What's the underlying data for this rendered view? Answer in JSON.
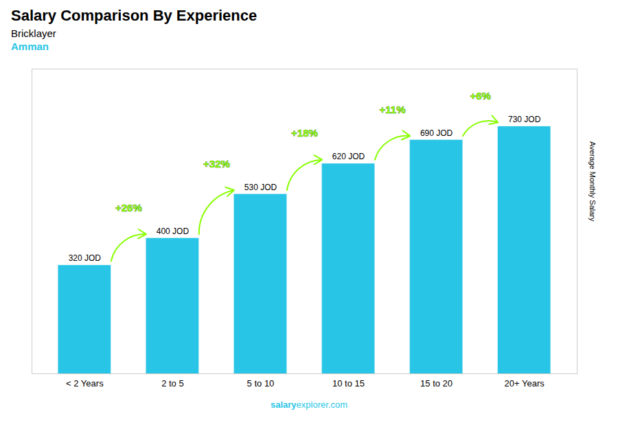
{
  "chart_data": {
    "type": "bar",
    "title": "Salary Comparison By Experience",
    "subtitle": [
      "Bricklayer",
      "Amman"
    ],
    "ylabel": "Average Monthly Salary",
    "caption": [
      "salary",
      "explorer.com"
    ],
    "categories": [
      "< 2 Years",
      "2 to 5",
      "5 to 10",
      "10 to 15",
      "15 to 20",
      "20+ Years"
    ],
    "values": [
      320,
      400,
      530,
      620,
      690,
      730
    ],
    "value_labels": [
      "320 JOD",
      "400 JOD",
      "530 JOD",
      "620 JOD",
      "690 JOD",
      "730 JOD"
    ],
    "data_labels": true,
    "changes": {
      "labels": [
        "+26%",
        "+32%",
        "+18%",
        "+11%",
        "+6%"
      ],
      "color": "#88ff00"
    },
    "color": "#29c5e6",
    "ylim": [
      0,
      900
    ],
    "yticks": [],
    "grid": false,
    "tick_labels": "x"
  }
}
